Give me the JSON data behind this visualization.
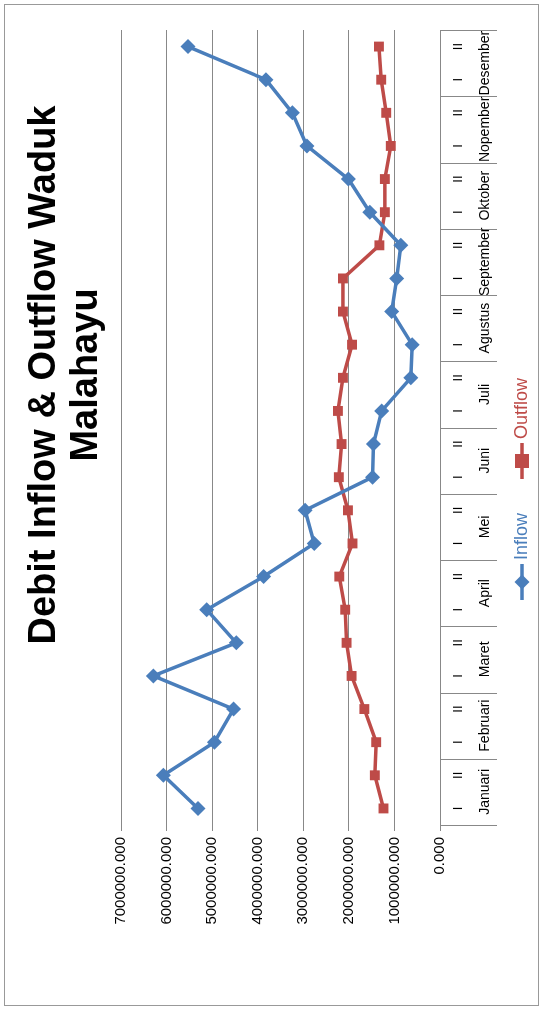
{
  "chart_data": {
    "type": "line",
    "title": "Debit Inflow & Outflow Waduk Malahayu",
    "orientation": "horizontal",
    "categories": [
      "II",
      "I",
      "II",
      "I",
      "II",
      "I",
      "II",
      "I",
      "II",
      "I",
      "II",
      "I",
      "II",
      "I",
      "II",
      "I",
      "II",
      "I",
      "II",
      "I",
      "II",
      "I",
      "II",
      "I"
    ],
    "annotations": [
      "Desember",
      "Nopember",
      "Oktober",
      "September",
      "Agustus",
      "Juli",
      "Juni",
      "Mei",
      "April",
      "Maret",
      "Februari",
      "Januari"
    ],
    "series": [
      {
        "name": "Inflow",
        "color": "#4a7ebb",
        "marker": "diamond",
        "values": [
          5530000,
          3820000,
          3240000,
          2920000,
          2010000,
          1540000,
          860000,
          950000,
          1060000,
          610000,
          640000,
          1280000,
          1460000,
          1480000,
          2960000,
          2760000,
          3870000,
          5120000,
          4470000,
          6290000,
          4530000,
          4950000,
          6070000,
          5310000
        ]
      },
      {
        "name": "Outflow",
        "color": "#be4b48",
        "marker": "square",
        "values": [
          1340000,
          1290000,
          1180000,
          1080000,
          1210000,
          1210000,
          1330000,
          2130000,
          2130000,
          1930000,
          2130000,
          2240000,
          2160000,
          2220000,
          2020000,
          1920000,
          2210000,
          2080000,
          2050000,
          1940000,
          1660000,
          1400000,
          1430000,
          1240000
        ]
      }
    ],
    "xlim": [
      7000000,
      0
    ],
    "xticks": [
      {
        "value": 0,
        "label": "0.000"
      },
      {
        "value": 1000000,
        "label": "1000000.000"
      },
      {
        "value": 2000000,
        "label": "2000000.000"
      },
      {
        "value": 3000000,
        "label": "3000000.000"
      },
      {
        "value": 4000000,
        "label": "4000000.000"
      },
      {
        "value": 5000000,
        "label": "5000000.000"
      },
      {
        "value": 6000000,
        "label": "6000000.000"
      },
      {
        "value": 7000000,
        "label": "7000000.000"
      }
    ],
    "grid": "x",
    "legend": "bottom",
    "line_style": "solid"
  }
}
